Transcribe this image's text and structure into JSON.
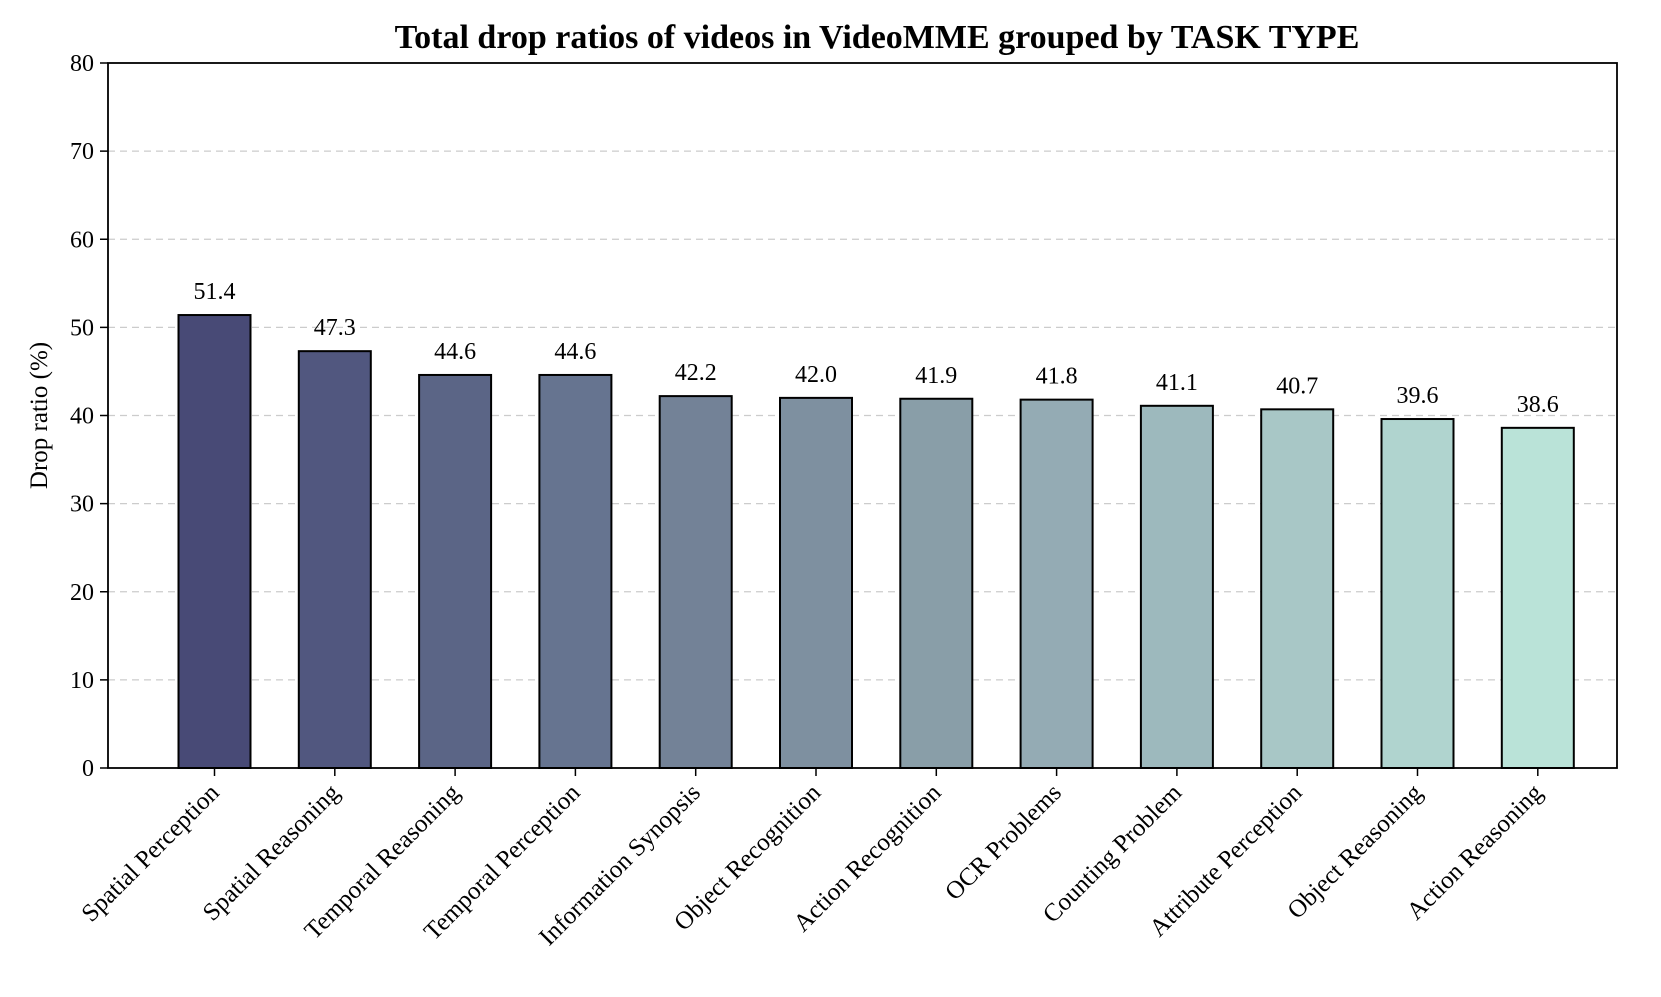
{
  "chart_data": {
    "type": "bar",
    "title": "Total drop ratios of videos in VideoMME grouped by TASK TYPE",
    "xlabel": "",
    "ylabel": "Drop ratio (%)",
    "ylim": [
      0,
      80
    ],
    "yticks": [
      0,
      10,
      20,
      30,
      40,
      50,
      60,
      70,
      80
    ],
    "grid": "y-dashed",
    "categories": [
      "Spatial Perception",
      "Spatial Reasoning",
      "Temporal Reasoning",
      "Temporal Perception",
      "Information Synopsis",
      "Object Recognition",
      "Action Recognition",
      "OCR Problems",
      "Counting Problem",
      "Attribute Perception",
      "Object Reasoning",
      "Action Reasoning"
    ],
    "values": [
      51.4,
      47.3,
      44.6,
      44.6,
      42.2,
      42.0,
      41.9,
      41.8,
      41.1,
      40.7,
      39.6,
      38.6
    ],
    "data_labels": [
      "51.4",
      "47.3",
      "44.6",
      "44.6",
      "42.2",
      "42.0",
      "41.9",
      "41.8",
      "41.1",
      "40.7",
      "39.6",
      "38.6"
    ],
    "colors": [
      "#484a76",
      "#51577f",
      "#5b6586",
      "#667490",
      "#738297",
      "#7e90a0",
      "#899ea8",
      "#94abb4",
      "#9db9bd",
      "#a8c7c6",
      "#b0d4cf",
      "#bae3d8"
    ],
    "bar_edge_color": "#000000"
  }
}
